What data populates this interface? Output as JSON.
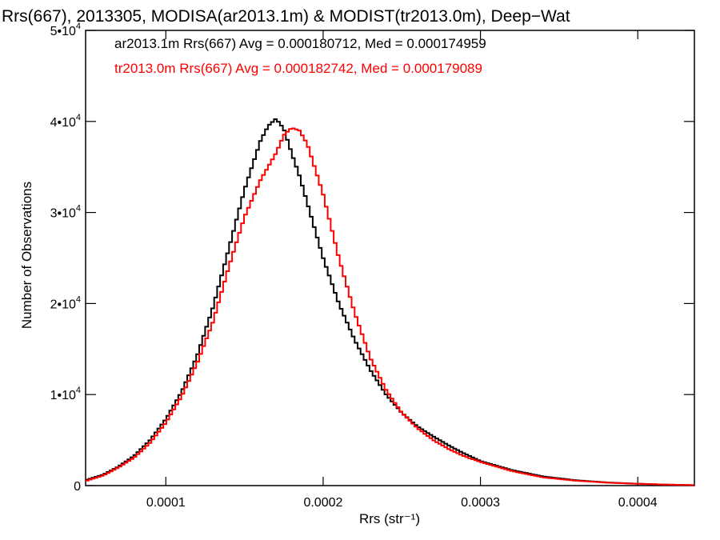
{
  "chart_data": {
    "type": "line",
    "title": "Rrs(667), 2013305, MODISA(ar2013.1m) & MODIST(tr2013.0m), Deep−Wat",
    "xlabel": "Rrs (str⁻¹)",
    "ylabel": "Number of Observations",
    "xlim": [
      4.9e-05,
      0.000436
    ],
    "ylim": [
      0,
      50000
    ],
    "x_ticks": [
      {
        "value": 0.0001,
        "label": "0.0001"
      },
      {
        "value": 0.0002,
        "label": "0.0002"
      },
      {
        "value": 0.0003,
        "label": "0.0003"
      },
      {
        "value": 0.0004,
        "label": "0.0004"
      }
    ],
    "y_ticks": [
      {
        "value": 0,
        "label": "0"
      },
      {
        "value": 10000,
        "base": "1•10",
        "exp": "4"
      },
      {
        "value": 20000,
        "base": "2•10",
        "exp": "4"
      },
      {
        "value": 30000,
        "base": "3•10",
        "exp": "4"
      },
      {
        "value": 40000,
        "base": "4•10",
        "exp": "4"
      },
      {
        "value": 50000,
        "base": "5•10",
        "exp": "4"
      }
    ],
    "legend": [
      {
        "text": "ar2013.1m Rrs(667) Avg = 0.000180712, Med = 0.000174959",
        "color": "#000000"
      },
      {
        "text": "tr2013.0m Rrs(667) Avg = 0.000182742, Med = 0.000179089",
        "color": "#ff0000"
      }
    ],
    "legend_placement": "top-left",
    "series": [
      {
        "color": "#000000",
        "x": [
          4.9e-05,
          6e-05,
          7e-05,
          8e-05,
          9e-05,
          0.0001,
          0.00011,
          0.00012,
          0.00013,
          0.00014,
          0.00015,
          0.00016,
          0.000165,
          0.00017,
          0.000175,
          0.00018,
          0.000185,
          0.00019,
          0.0002,
          0.00021,
          0.00022,
          0.00023,
          0.00024,
          0.00025,
          0.00026,
          0.00027,
          0.00028,
          0.00029,
          0.0003,
          0.00032,
          0.00034,
          0.00036,
          0.00038,
          0.0004,
          0.00042,
          0.000436
        ],
        "y": [
          600,
          1200,
          2100,
          3300,
          5000,
          7300,
          10300,
          14300,
          19600,
          26000,
          32500,
          37800,
          39500,
          40300,
          39200,
          36500,
          34000,
          31000,
          25000,
          20000,
          16000,
          12700,
          10000,
          8000,
          6500,
          5400,
          4400,
          3500,
          2700,
          1700,
          1000,
          600,
          350,
          200,
          100,
          50
        ]
      },
      {
        "color": "#ff0000",
        "x": [
          4.9e-05,
          6e-05,
          7e-05,
          8e-05,
          9e-05,
          0.0001,
          0.00011,
          0.00012,
          0.00013,
          0.00014,
          0.00015,
          0.00016,
          0.00017,
          0.000175,
          0.00018,
          0.000185,
          0.00019,
          0.0002,
          0.00021,
          0.00022,
          0.00023,
          0.00024,
          0.00025,
          0.00026,
          0.00027,
          0.00028,
          0.00029,
          0.0003,
          0.00032,
          0.00034,
          0.00036,
          0.00038,
          0.0004,
          0.00042,
          0.000436
        ],
        "y": [
          500,
          1100,
          2000,
          3100,
          4700,
          6900,
          9800,
          13500,
          18000,
          24000,
          29500,
          33500,
          36500,
          38500,
          39300,
          39000,
          37500,
          32000,
          25000,
          19000,
          14000,
          10500,
          8000,
          6300,
          5000,
          4000,
          3200,
          2600,
          1600,
          900,
          550,
          330,
          200,
          100,
          50
        ]
      }
    ]
  }
}
